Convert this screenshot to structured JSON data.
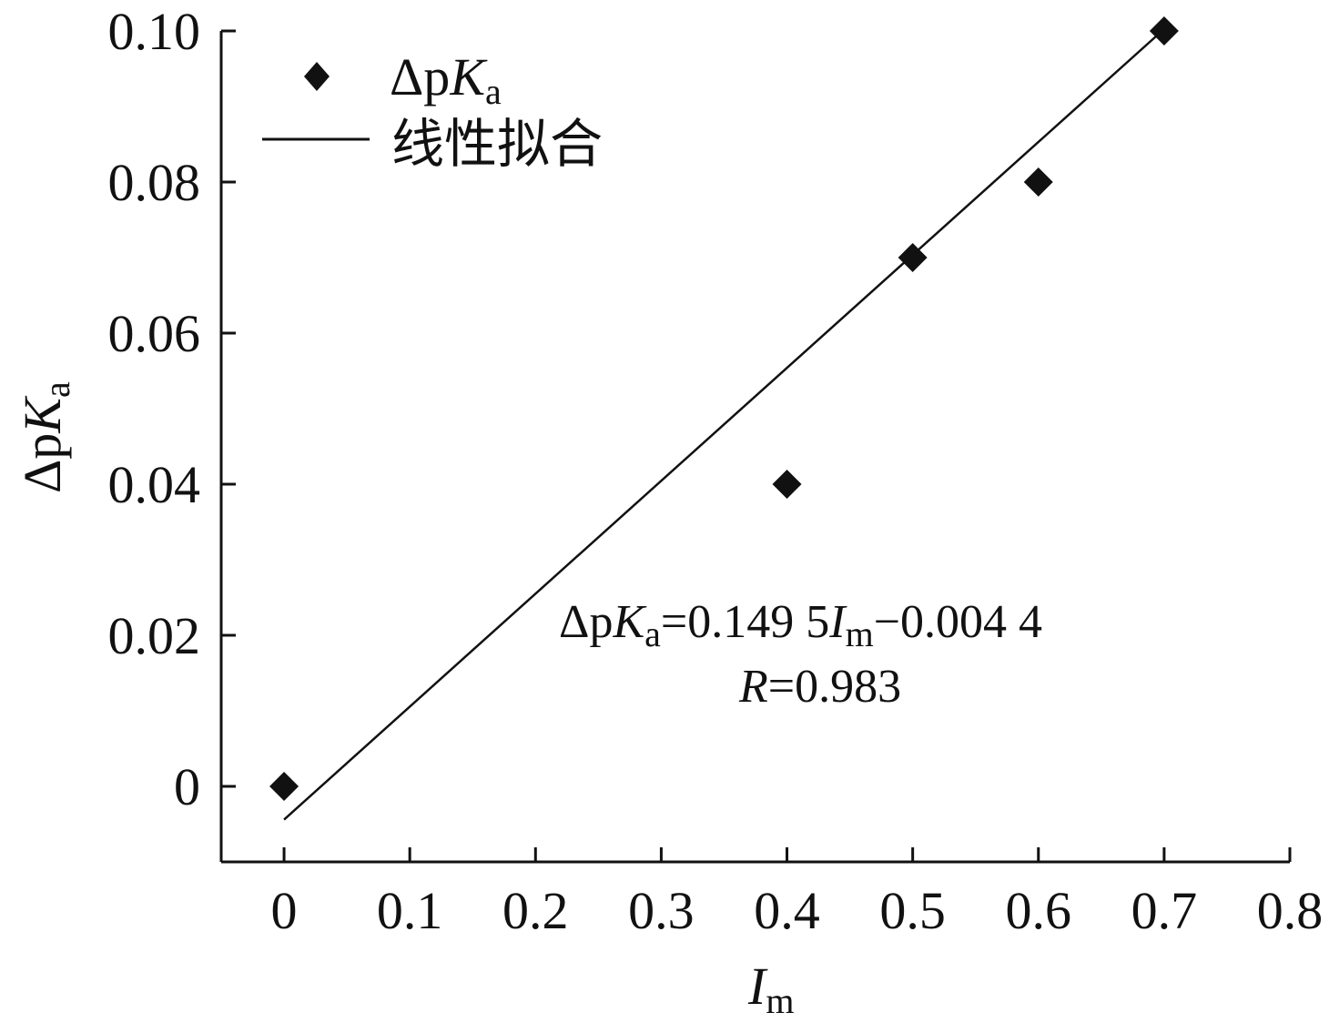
{
  "chart_data": {
    "type": "scatter",
    "xlabel": {
      "main": "I",
      "sub": "m"
    },
    "ylabel": {
      "delta": "Δp",
      "main": "K",
      "sub": "a"
    },
    "xlim": [
      -0.05,
      0.8
    ],
    "ylim": [
      -0.01,
      0.1
    ],
    "x_ticks": [
      "0",
      "0.1",
      "0.2",
      "0.3",
      "0.4",
      "0.5",
      "0.6",
      "0.7",
      "0.8"
    ],
    "y_ticks": [
      "0",
      "0.02",
      "0.04",
      "0.06",
      "0.08",
      "0.10"
    ],
    "series": [
      {
        "name": "ΔpKa",
        "type": "scatter",
        "marker": "diamond",
        "color": "#111111",
        "points": [
          {
            "x": 0.0,
            "y": 0.0
          },
          {
            "x": 0.4,
            "y": 0.04
          },
          {
            "x": 0.5,
            "y": 0.07
          },
          {
            "x": 0.6,
            "y": 0.08
          },
          {
            "x": 0.7,
            "y": 0.1
          }
        ]
      },
      {
        "name": "线性拟合",
        "type": "line",
        "color": "#111111",
        "slope": 0.1495,
        "intercept": -0.0044,
        "x_range": [
          0.0,
          0.7
        ]
      }
    ],
    "legend": {
      "position": "top-left",
      "scatter_label": {
        "delta": "Δp",
        "main": "K",
        "sub": "a"
      },
      "line_label": "线性拟合"
    },
    "annotation": {
      "eq_lhs": {
        "delta": "Δp",
        "main": "K",
        "sub": "a"
      },
      "eq_rhs_1": "=0.149 5",
      "eq_var": "I",
      "eq_var_sub": "m",
      "eq_rhs_2": "−0.004 4",
      "r_var": "R",
      "r_value": "=0.983"
    },
    "grid": false
  }
}
